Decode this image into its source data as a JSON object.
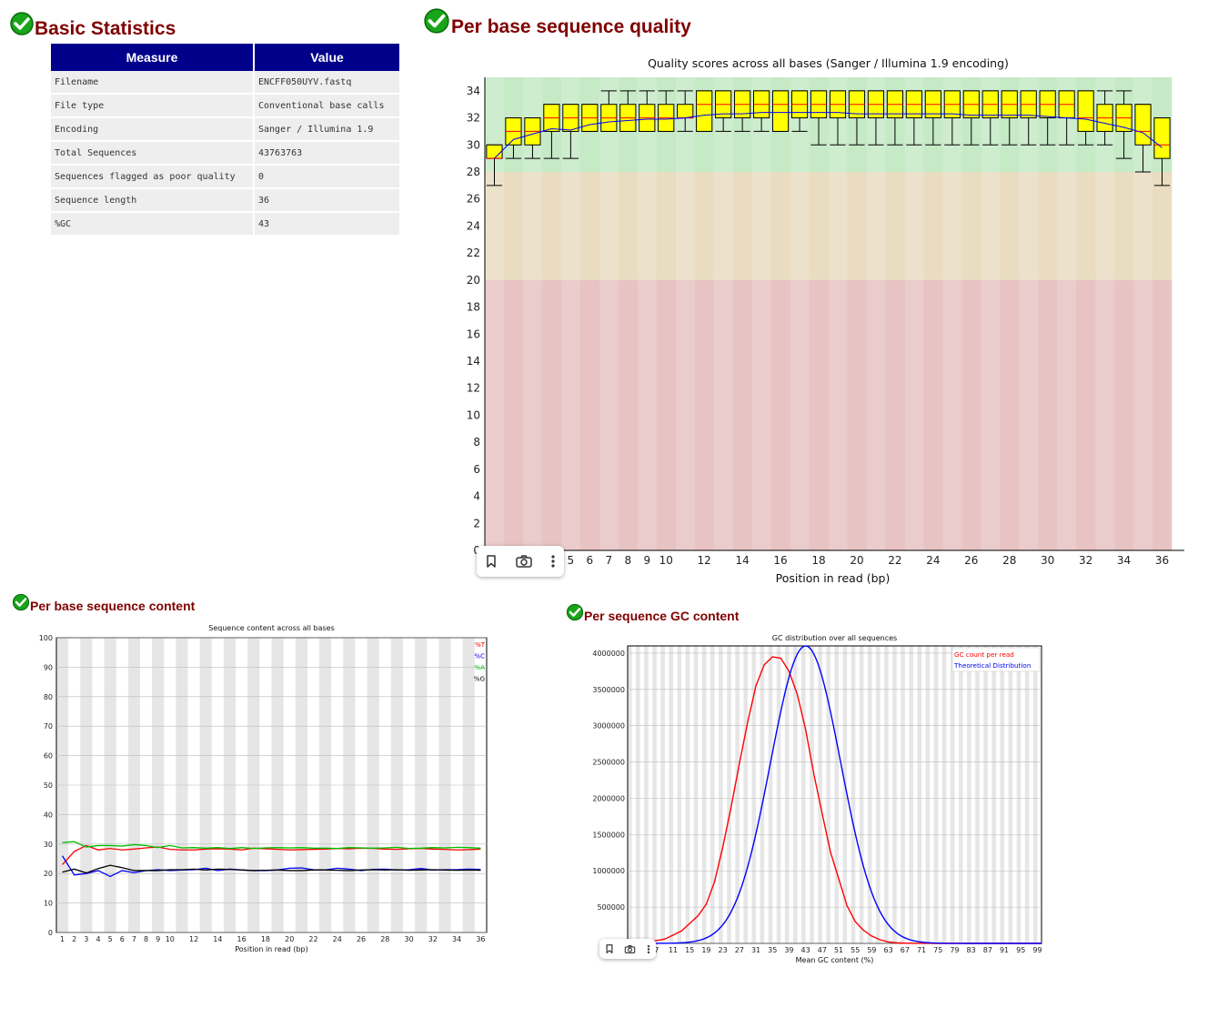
{
  "basic_stats": {
    "title": "Basic Statistics",
    "headers": [
      "Measure",
      "Value"
    ],
    "rows": [
      [
        "Filename",
        "ENCFF050UYV.fastq"
      ],
      [
        "File type",
        "Conventional base calls"
      ],
      [
        "Encoding",
        "Sanger / Illumina 1.9"
      ],
      [
        "Total Sequences",
        "43763763"
      ],
      [
        "Sequences flagged as poor quality",
        "0"
      ],
      [
        "Sequence length",
        "36"
      ],
      [
        "%GC",
        "43"
      ]
    ]
  },
  "colors": {
    "title": "#800000",
    "header_bg": "#00008b",
    "box_fill": "#ffff00",
    "median": "#ff0000",
    "mean": "#0000ff",
    "good": "#c6e9c6",
    "warn": "#e9dcc1",
    "bad": "#e8c3c3",
    "series_T": "#ff0000",
    "series_C": "#0000ff",
    "series_A": "#00c000",
    "series_G": "#000000"
  },
  "icons": {
    "section_status": "check-circle-icon",
    "toolbar": [
      "bookmark-icon",
      "camera-icon",
      "more-vertical-icon"
    ]
  },
  "chart_data": [
    {
      "id": "per_base_quality",
      "section_title": "Per base sequence quality",
      "type": "box",
      "title": "Quality scores across all bases (Sanger / Illumina 1.9 encoding)",
      "xlabel": "Position in read (bp)",
      "ylabel": "",
      "ylim": [
        0,
        35
      ],
      "yticks": [
        0,
        2,
        4,
        6,
        8,
        10,
        12,
        14,
        16,
        18,
        20,
        22,
        24,
        26,
        28,
        30,
        32,
        34
      ],
      "xtick_labels": [
        "1",
        "2",
        "3",
        "4",
        "5",
        "6",
        "7",
        "8",
        "9",
        "10",
        "12",
        "14",
        "16",
        "18",
        "20",
        "22",
        "24",
        "26",
        "28",
        "30",
        "32",
        "34",
        "36"
      ],
      "zones": [
        {
          "from": 28,
          "to": 35,
          "color": "#c6e9c6"
        },
        {
          "from": 20,
          "to": 28,
          "color": "#e9dcc1"
        },
        {
          "from": 0,
          "to": 20,
          "color": "#e8c3c3"
        }
      ],
      "positions": [
        1,
        2,
        3,
        4,
        5,
        6,
        7,
        8,
        9,
        10,
        11,
        12,
        13,
        14,
        15,
        16,
        17,
        18,
        19,
        20,
        21,
        22,
        23,
        24,
        25,
        26,
        27,
        28,
        29,
        30,
        31,
        32,
        33,
        34,
        35,
        36
      ],
      "lower_whisker": [
        27,
        29,
        29,
        29,
        29,
        31,
        31,
        31,
        31,
        31,
        31,
        31,
        31,
        31,
        31,
        31,
        31,
        30,
        30,
        30,
        30,
        30,
        30,
        30,
        30,
        30,
        30,
        30,
        30,
        30,
        30,
        30,
        30,
        29,
        28,
        27
      ],
      "q1": [
        29,
        30,
        30,
        31,
        31,
        31,
        31,
        31,
        31,
        31,
        32,
        31,
        32,
        32,
        32,
        31,
        32,
        32,
        32,
        32,
        32,
        32,
        32,
        32,
        32,
        32,
        32,
        32,
        32,
        32,
        32,
        31,
        31,
        31,
        30,
        29
      ],
      "median": [
        29,
        31,
        31,
        32,
        32,
        32,
        32,
        32,
        32,
        32,
        32,
        33,
        33,
        33,
        33,
        33,
        33,
        33,
        33,
        33,
        33,
        33,
        33,
        33,
        33,
        33,
        33,
        33,
        33,
        33,
        33,
        32,
        32,
        32,
        31,
        30
      ],
      "q3": [
        30,
        32,
        32,
        33,
        33,
        33,
        33,
        33,
        33,
        33,
        33,
        34,
        34,
        34,
        34,
        34,
        34,
        34,
        34,
        34,
        34,
        34,
        34,
        34,
        34,
        34,
        34,
        34,
        34,
        34,
        34,
        34,
        33,
        33,
        33,
        32
      ],
      "upper_whisker": [
        30,
        32,
        32,
        33,
        33,
        33,
        34,
        34,
        34,
        34,
        34,
        34,
        34,
        34,
        34,
        34,
        34,
        34,
        34,
        34,
        34,
        34,
        34,
        34,
        34,
        34,
        34,
        34,
        34,
        34,
        34,
        34,
        34,
        34,
        33,
        32
      ],
      "mean": [
        29.0,
        30.4,
        30.8,
        31.2,
        31.1,
        31.5,
        31.7,
        31.8,
        31.9,
        31.9,
        32.0,
        32.2,
        32.3,
        32.3,
        32.4,
        32.4,
        32.4,
        32.4,
        32.4,
        32.3,
        32.3,
        32.3,
        32.3,
        32.3,
        32.3,
        32.2,
        32.2,
        32.2,
        32.2,
        32.1,
        32.0,
        31.9,
        31.6,
        31.3,
        30.9,
        29.8
      ]
    },
    {
      "id": "per_base_content",
      "section_title": "Per base sequence content",
      "type": "line",
      "title": "Sequence content across all bases",
      "xlabel": "Position in read (bp)",
      "ylabel": "",
      "ylim": [
        0,
        100
      ],
      "yticks": [
        0,
        10,
        20,
        30,
        40,
        50,
        60,
        70,
        80,
        90,
        100
      ],
      "xtick_labels": [
        "1",
        "2",
        "3",
        "4",
        "5",
        "6",
        "7",
        "8",
        "9",
        "10",
        "12",
        "14",
        "16",
        "18",
        "20",
        "22",
        "24",
        "26",
        "28",
        "30",
        "32",
        "34",
        "36"
      ],
      "x": [
        1,
        2,
        3,
        4,
        5,
        6,
        7,
        8,
        9,
        10,
        11,
        12,
        13,
        14,
        15,
        16,
        17,
        18,
        19,
        20,
        21,
        22,
        23,
        24,
        25,
        26,
        27,
        28,
        29,
        30,
        31,
        32,
        33,
        34,
        35,
        36
      ],
      "legend_placement": "top-right",
      "series": [
        {
          "name": "%T",
          "color": "#ff0000",
          "values": [
            23.0,
            27.5,
            29.5,
            28.0,
            28.5,
            28.0,
            28.3,
            28.7,
            29.0,
            28.2,
            28.0,
            28.0,
            28.3,
            28.4,
            28.3,
            28.0,
            28.6,
            28.4,
            28.2,
            28.0,
            28.1,
            28.2,
            28.3,
            28.5,
            28.4,
            28.6,
            28.5,
            28.3,
            28.2,
            28.4,
            28.5,
            28.3,
            28.2,
            28.0,
            28.1,
            28.3
          ]
        },
        {
          "name": "%C",
          "color": "#0000ff",
          "values": [
            26.0,
            19.5,
            20.0,
            21.0,
            19.0,
            21.0,
            20.3,
            21.0,
            21.3,
            21.0,
            21.2,
            21.3,
            21.8,
            21.0,
            21.5,
            21.2,
            21.0,
            21.0,
            21.2,
            21.8,
            21.9,
            21.3,
            21.2,
            21.8,
            21.5,
            21.0,
            21.4,
            21.5,
            21.2,
            21.3,
            21.7,
            21.2,
            21.3,
            21.3,
            21.5,
            21.4
          ]
        },
        {
          "name": "%A",
          "color": "#00c000",
          "values": [
            30.5,
            30.8,
            29.0,
            29.5,
            29.5,
            29.3,
            29.8,
            29.5,
            28.8,
            29.5,
            28.7,
            28.8,
            28.6,
            28.8,
            28.5,
            28.8,
            28.5,
            28.7,
            28.8,
            28.7,
            28.8,
            28.6,
            28.6,
            28.5,
            28.8,
            28.7,
            28.6,
            28.7,
            28.9,
            28.5,
            28.6,
            28.8,
            28.7,
            28.9,
            28.8,
            28.6
          ]
        },
        {
          "name": "%G",
          "color": "#000000",
          "values": [
            20.5,
            21.5,
            20.2,
            21.7,
            22.8,
            22.0,
            21.0,
            21.0,
            21.0,
            21.3,
            21.3,
            21.5,
            21.2,
            21.5,
            21.4,
            21.2,
            21.0,
            21.1,
            21.2,
            21.0,
            21.0,
            21.2,
            21.2,
            21.1,
            21.0,
            21.2,
            21.3,
            21.2,
            21.3,
            21.1,
            21.2,
            21.3,
            21.2,
            21.1,
            21.2,
            21.1
          ]
        }
      ]
    },
    {
      "id": "per_seq_gc",
      "section_title": "Per sequence GC content",
      "type": "line",
      "title": "GC distribution over all sequences",
      "xlabel": "Mean GC content (%)",
      "ylabel": "",
      "ylim": [
        0,
        4100000
      ],
      "xlim": [
        0,
        100
      ],
      "yticks": [
        0,
        500000,
        1000000,
        1500000,
        2000000,
        2500000,
        3000000,
        3500000,
        4000000
      ],
      "xticks": [
        3,
        7,
        11,
        15,
        19,
        23,
        27,
        31,
        35,
        39,
        43,
        47,
        51,
        55,
        59,
        63,
        67,
        71,
        75,
        79,
        83,
        87,
        91,
        95,
        99
      ],
      "legend_placement": "top-right",
      "series": [
        {
          "name": "GC count per read",
          "color": "#ff0000",
          "x": [
            0,
            5,
            9,
            13,
            17,
            19,
            21,
            23,
            25,
            27,
            29,
            31,
            33,
            35,
            37,
            39,
            41,
            43,
            45,
            47,
            49,
            51,
            53,
            55,
            57,
            59,
            61,
            63,
            65,
            67,
            69,
            71,
            73,
            75,
            77,
            79,
            81,
            85,
            90,
            100
          ],
          "y": [
            0,
            20000,
            60000,
            170000,
            380000,
            540000,
            850000,
            1330000,
            1880000,
            2480000,
            3050000,
            3550000,
            3840000,
            3950000,
            3930000,
            3750000,
            3430000,
            2950000,
            2330000,
            1790000,
            1260000,
            890000,
            520000,
            300000,
            180000,
            100000,
            50000,
            20000,
            8000,
            3000,
            1000,
            500,
            200,
            100,
            50,
            20,
            10,
            5,
            0,
            0
          ]
        },
        {
          "name": "Theoretical Distribution",
          "color": "#0000ff",
          "mean": 43,
          "sd": 8.5,
          "peak": 4100000
        }
      ]
    }
  ]
}
